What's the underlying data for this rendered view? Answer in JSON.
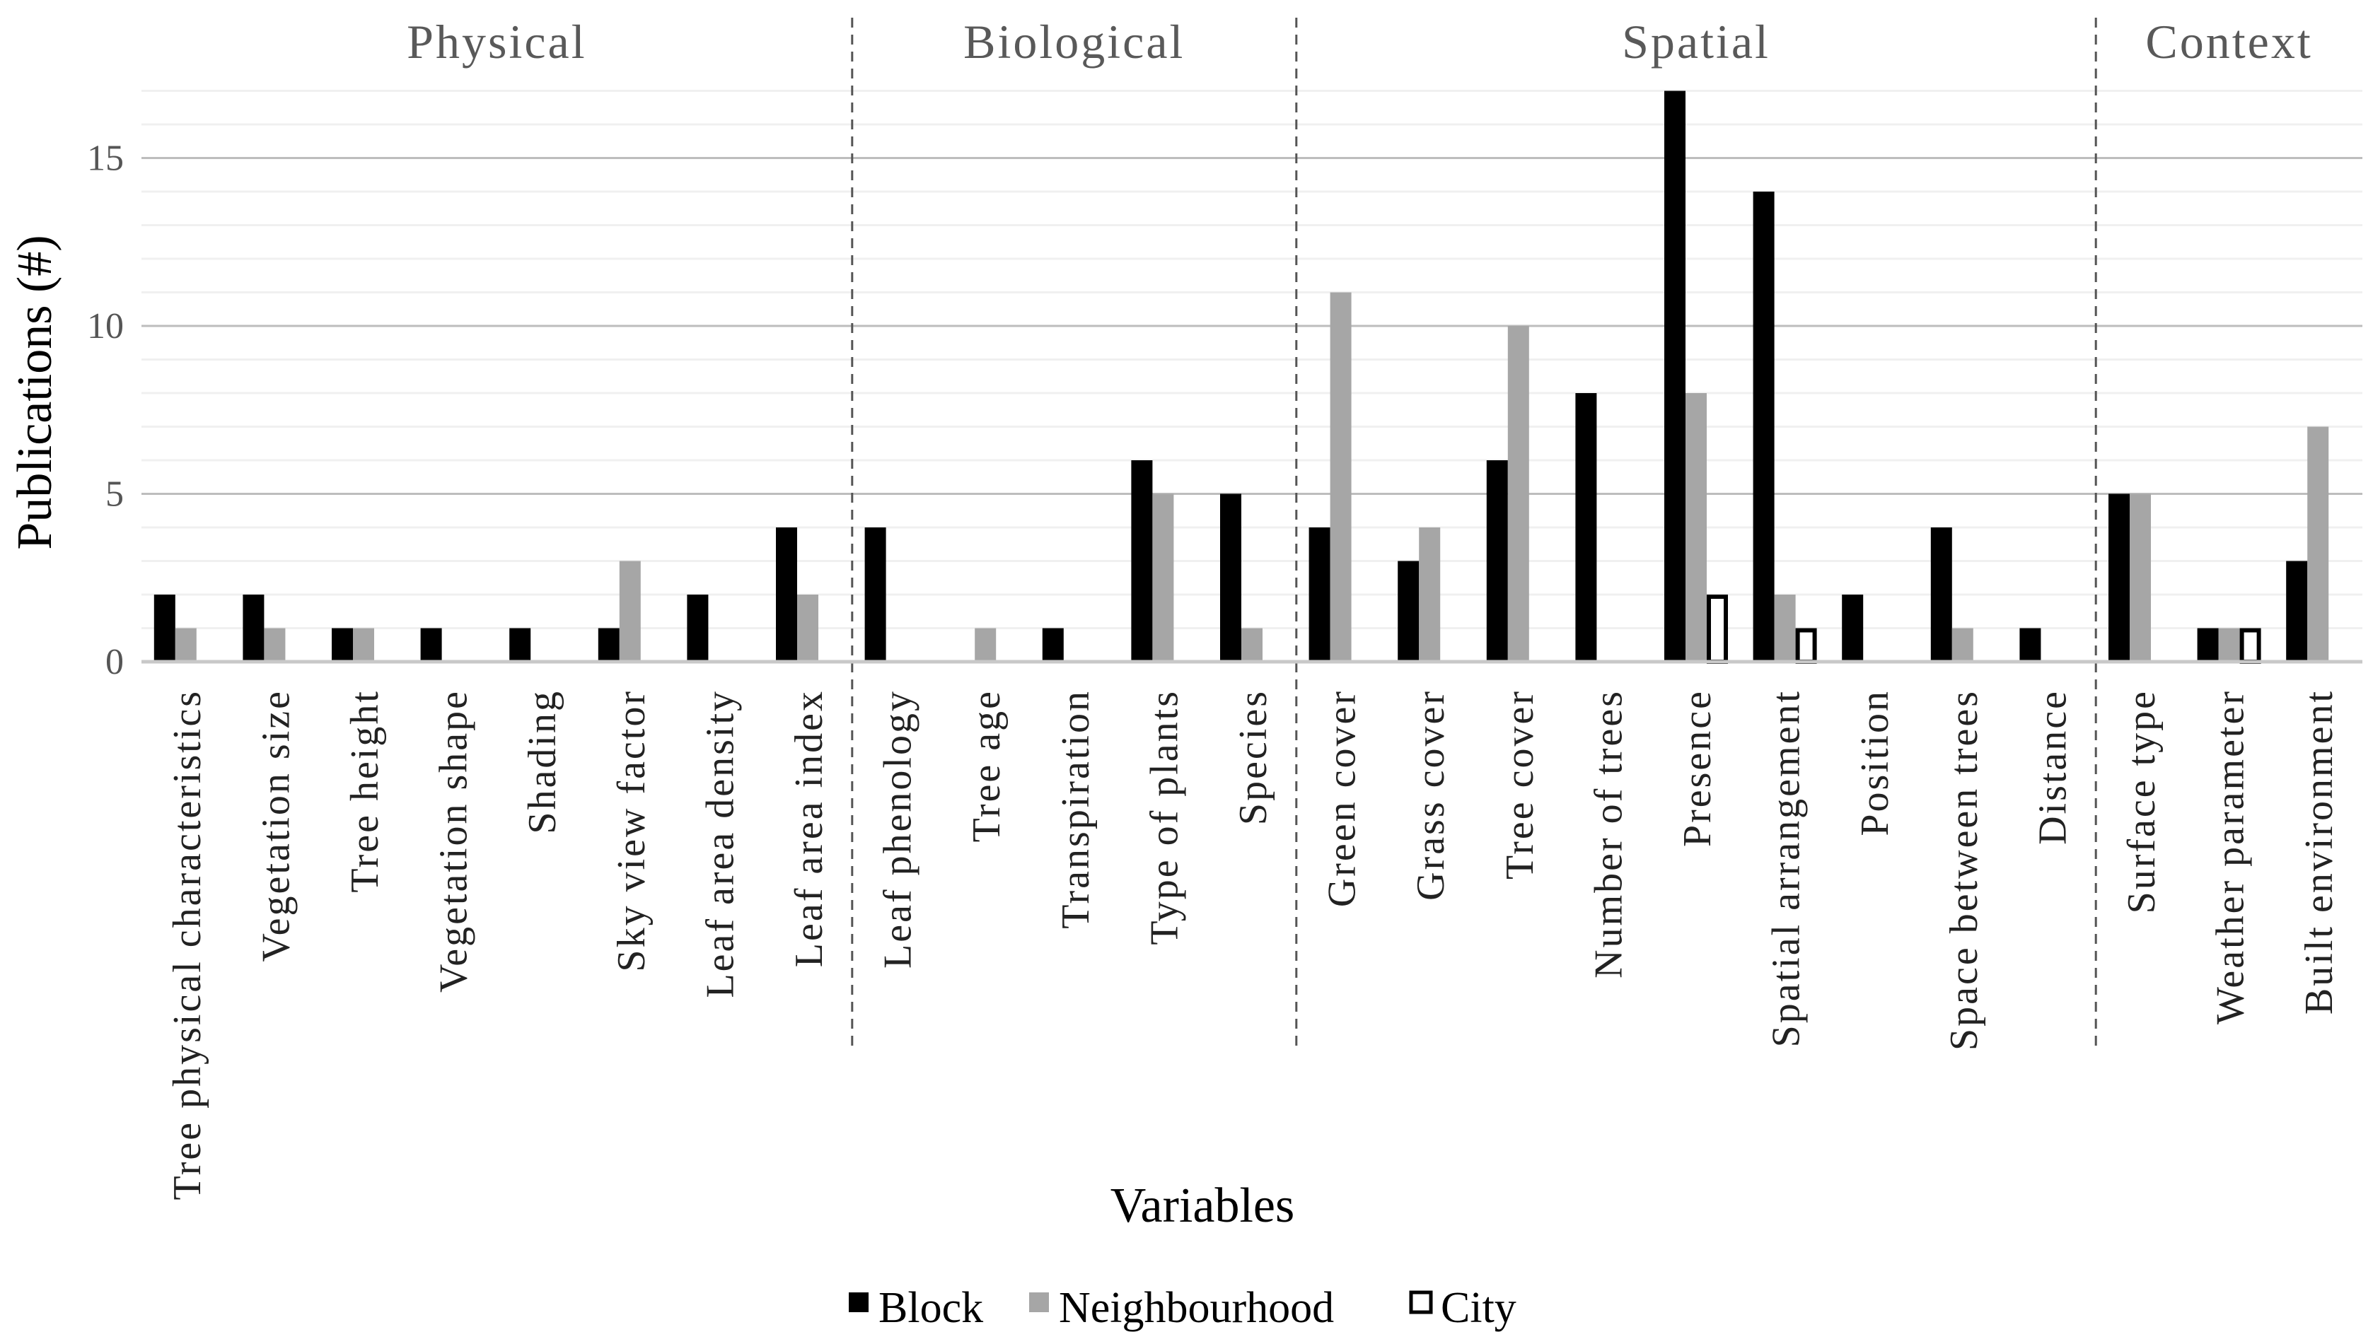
{
  "chart_data": {
    "type": "bar",
    "title": "",
    "xlabel": "Variables",
    "ylabel": "Publications (#)",
    "ylim": [
      0,
      17
    ],
    "yticks": [
      "0",
      "5",
      "10",
      "15"
    ],
    "legend_position": "bottom",
    "groups": [
      {
        "label": "Physical",
        "start": 0,
        "count": 8
      },
      {
        "label": "Biological",
        "start": 8,
        "count": 5
      },
      {
        "label": "Spatial",
        "start": 13,
        "count": 9
      },
      {
        "label": "Context",
        "start": 22,
        "count": 3
      }
    ],
    "categories": [
      "Tree physical characteristics",
      "Vegetation size",
      "Tree height",
      "Vegetation shape",
      "Shading",
      "Sky view factor",
      "Leaf area density",
      "Leaf area index",
      "Leaf phenology",
      "Tree age",
      "Transpiration",
      "Type of plants",
      "Species",
      "Green cover",
      "Grass cover",
      "Tree cover",
      "Number of trees",
      "Presence",
      "Spatial arrangement",
      "Position",
      "Space between trees",
      "Distance",
      "Surface type",
      "Weather parameter",
      "Built environment"
    ],
    "series": [
      {
        "name": "Block",
        "color": "#000000",
        "values": [
          2,
          2,
          1,
          1,
          1,
          1,
          2,
          4,
          4,
          0,
          1,
          6,
          5,
          4,
          3,
          6,
          8,
          17,
          14,
          2,
          4,
          1,
          5,
          1,
          3
        ]
      },
      {
        "name": "Neighbourhood",
        "color": "#a6a6a6",
        "values": [
          1,
          1,
          1,
          0,
          0,
          3,
          0,
          2,
          0,
          1,
          0,
          5,
          1,
          11,
          4,
          10,
          0,
          8,
          2,
          0,
          1,
          0,
          5,
          1,
          7
        ]
      },
      {
        "name": "City",
        "color": "#ffffff",
        "outline": "#000000",
        "values": [
          0,
          0,
          0,
          0,
          0,
          0,
          0,
          0,
          0,
          0,
          0,
          0,
          0,
          0,
          0,
          0,
          0,
          2,
          1,
          0,
          0,
          0,
          0,
          1,
          0
        ]
      }
    ]
  }
}
